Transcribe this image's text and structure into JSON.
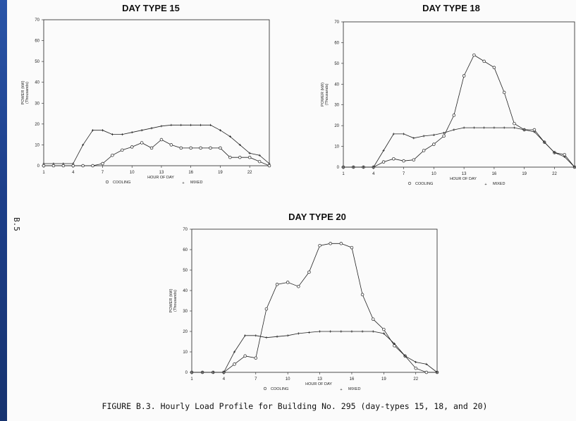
{
  "caption": "FIGURE B.3.  Hourly Load Profile for Building No. 295 (day-types 15, 18, and 20)",
  "page_number": "B.5",
  "chart_data": [
    {
      "type": "line",
      "title": "DAY TYPE 15",
      "xlabel": "HOUR OF DAY",
      "ylabel": "POWER (kW)",
      "ylabel2": "(Thousands)",
      "ylim": [
        0,
        70
      ],
      "xlim": [
        1,
        24
      ],
      "yticks": [
        0,
        10,
        20,
        30,
        40,
        50,
        60,
        70
      ],
      "xticks": [
        1,
        4,
        7,
        10,
        13,
        16,
        19,
        22
      ],
      "legend": [
        {
          "symbol": "o",
          "label": "COOLING"
        },
        {
          "symbol": "+",
          "label": "MIXED"
        }
      ],
      "x": [
        1,
        2,
        3,
        4,
        5,
        6,
        7,
        8,
        9,
        10,
        11,
        12,
        13,
        14,
        15,
        16,
        17,
        18,
        19,
        20,
        21,
        22,
        23,
        24
      ],
      "series": [
        {
          "name": "COOLING",
          "marker": "o",
          "values": [
            0,
            0,
            0,
            0,
            0,
            0,
            1,
            5,
            7.5,
            9,
            11,
            8.5,
            12.5,
            10,
            8.5,
            8.5,
            8.5,
            8.5,
            8.5,
            4,
            4,
            4,
            2,
            0
          ]
        },
        {
          "name": "MIXED",
          "marker": "+",
          "values": [
            1,
            1,
            1,
            1,
            10,
            17,
            17,
            15,
            15,
            16,
            17,
            18,
            19,
            19.5,
            19.5,
            19.5,
            19.5,
            19.5,
            17,
            14,
            10,
            6,
            5,
            1
          ]
        }
      ]
    },
    {
      "type": "line",
      "title": "DAY TYPE 18",
      "xlabel": "HOUR OF DAY",
      "ylabel": "POWER (kW)",
      "ylabel2": "(Thousands)",
      "ylim": [
        0,
        70
      ],
      "xlim": [
        1,
        24
      ],
      "yticks": [
        0,
        10,
        20,
        30,
        40,
        50,
        60,
        70
      ],
      "xticks": [
        1,
        4,
        7,
        10,
        13,
        16,
        19,
        22
      ],
      "legend": [
        {
          "symbol": "o",
          "label": "COOLING"
        },
        {
          "symbol": "+",
          "label": "MIXED"
        }
      ],
      "x": [
        1,
        2,
        3,
        4,
        5,
        6,
        7,
        8,
        9,
        10,
        11,
        12,
        13,
        14,
        15,
        16,
        17,
        18,
        19,
        20,
        21,
        22,
        23,
        24
      ],
      "series": [
        {
          "name": "COOLING",
          "marker": "o",
          "values": [
            0,
            0,
            0,
            0,
            2.5,
            4,
            3,
            3.5,
            8,
            11,
            15,
            25,
            44,
            54,
            51,
            48,
            36,
            21,
            18,
            18,
            12,
            7,
            6,
            0
          ]
        },
        {
          "name": "MIXED",
          "marker": "+",
          "values": [
            0,
            0,
            0,
            0,
            8,
            16,
            16,
            14,
            15,
            15.5,
            16.5,
            18,
            19,
            19,
            19,
            19,
            19,
            19,
            18,
            17,
            12,
            7,
            5,
            0
          ]
        }
      ]
    },
    {
      "type": "line",
      "title": "DAY TYPE 20",
      "xlabel": "HOUR OF DAY",
      "ylabel": "POWER (kW)",
      "ylabel2": "(Thousands)",
      "ylim": [
        0,
        70
      ],
      "xlim": [
        1,
        24
      ],
      "yticks": [
        0,
        10,
        20,
        30,
        40,
        50,
        60,
        70
      ],
      "xticks": [
        1,
        4,
        7,
        10,
        13,
        16,
        19,
        22
      ],
      "legend": [
        {
          "symbol": "o",
          "label": "COOLING"
        },
        {
          "symbol": "+",
          "label": "MIXED"
        }
      ],
      "x": [
        1,
        2,
        3,
        4,
        5,
        6,
        7,
        8,
        9,
        10,
        11,
        12,
        13,
        14,
        15,
        16,
        17,
        18,
        19,
        20,
        21,
        22,
        23,
        24
      ],
      "series": [
        {
          "name": "COOLING",
          "marker": "o",
          "values": [
            0,
            0,
            0,
            0,
            4,
            8,
            7,
            31,
            43,
            44,
            42,
            49,
            62,
            63,
            63,
            61,
            38,
            26,
            21,
            13,
            8,
            2,
            0,
            0
          ]
        },
        {
          "name": "MIXED",
          "marker": "+",
          "values": [
            0,
            0,
            0,
            0,
            10,
            18,
            18,
            17,
            17.5,
            18,
            19,
            19.5,
            20,
            20,
            20,
            20,
            20,
            20,
            19,
            14,
            8,
            5,
            4,
            0
          ]
        }
      ]
    }
  ]
}
